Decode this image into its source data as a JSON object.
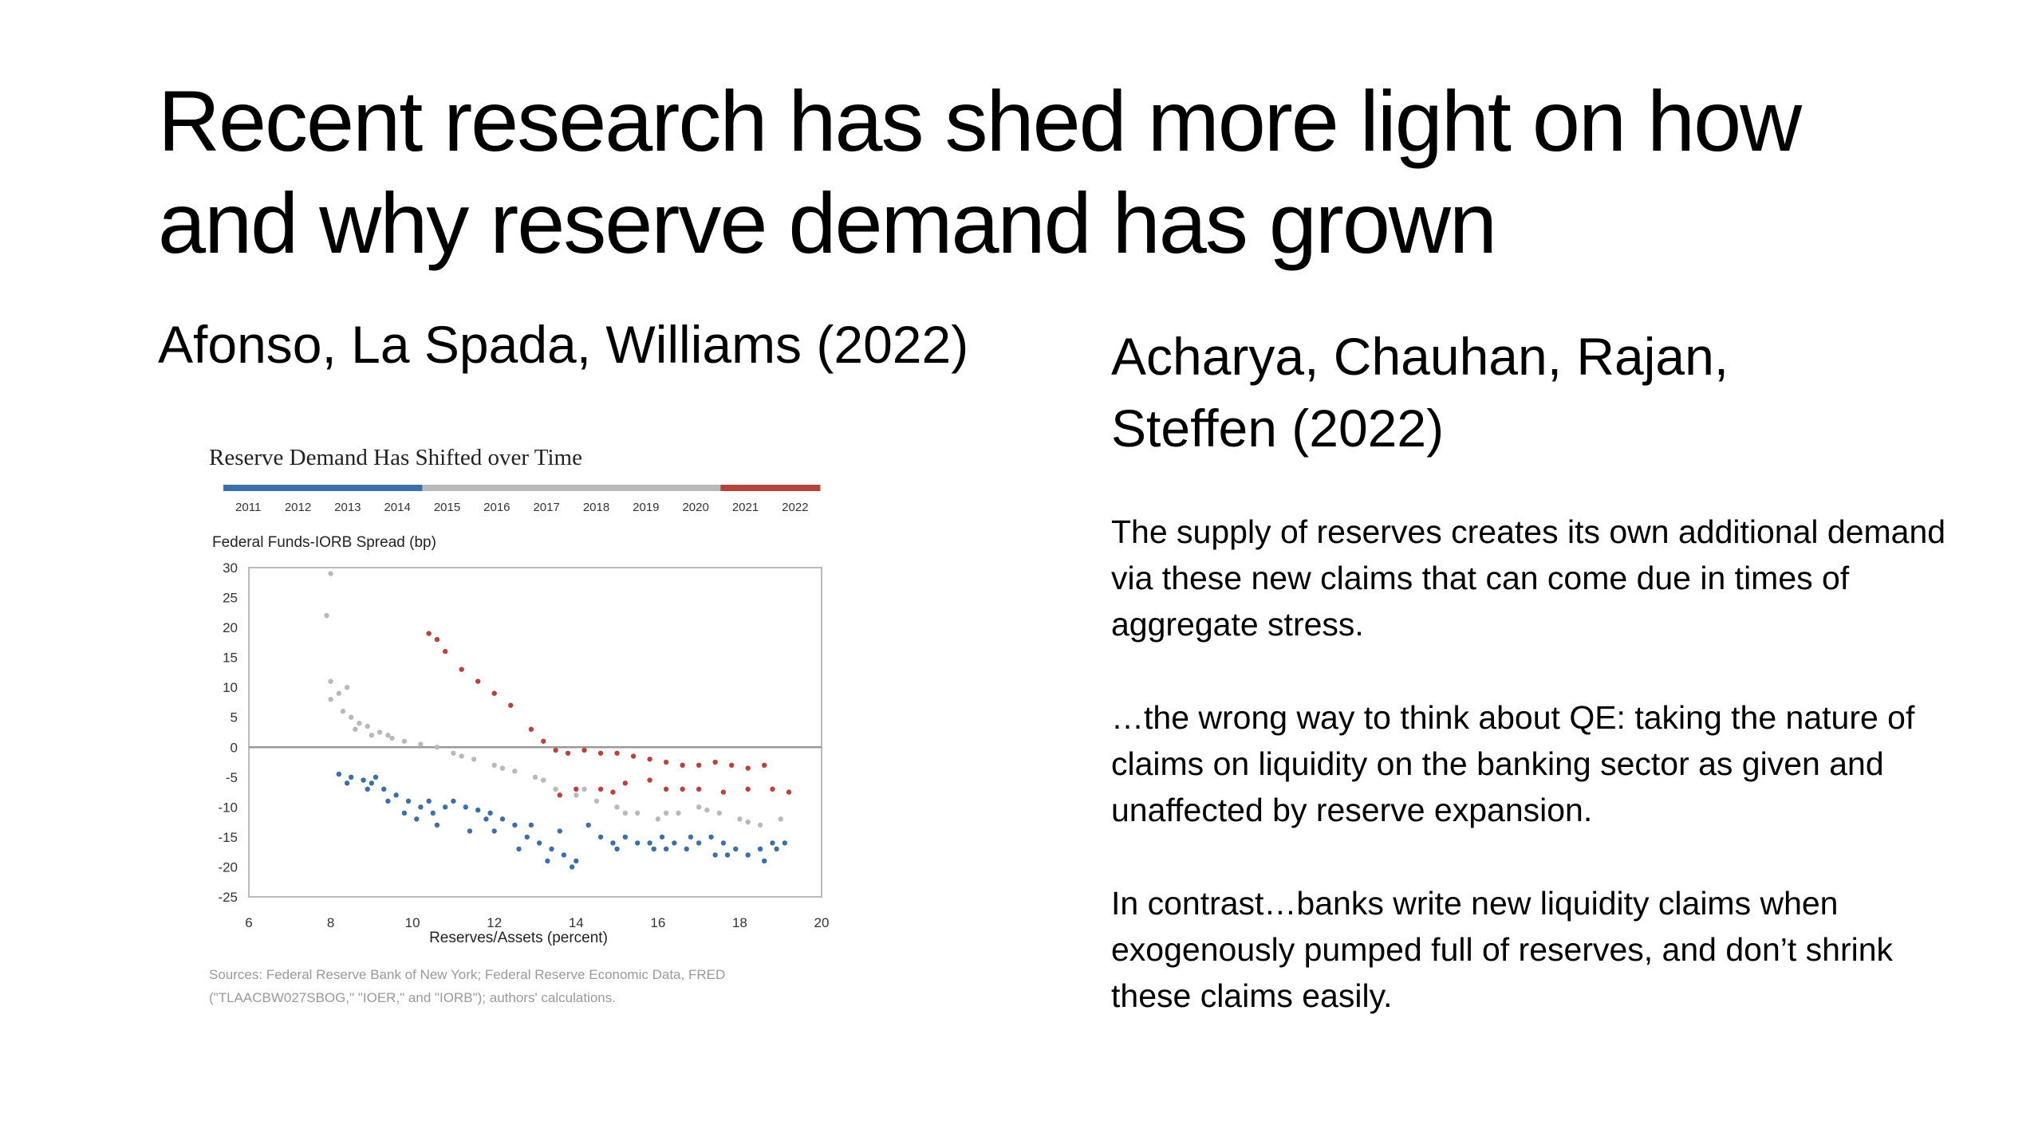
{
  "slide": {
    "title": "Recent research has shed more light on how and why reserve demand has grown",
    "left_heading": "Afonso, La Spada, Williams (2022)",
    "right_heading": "Acharya, Chauhan, Rajan, Steffen (2022)",
    "paragraphs": [
      "The supply of reserves creates its own additional demand via these new claims that can come due in times of aggregate stress.",
      "…the wrong way to think about QE: taking the nature of claims on liquidity on the banking sector as given and unaffected by reserve expansion.",
      "In contrast…banks write new liquidity claims when exogenously pumped full of reserves, and don’t shrink these claims easily."
    ]
  },
  "chart_data": {
    "type": "scatter",
    "title": "Reserve Demand Has Shifted over Time",
    "xlabel": "Reserves/Assets (percent)",
    "ylabel": "Federal Funds-IORB Spread (bp)",
    "source": "Sources: Federal Reserve Bank of New York; Federal Reserve Economic Data, FRED (\"TLAACBW027SBOG,\" \"IOER,\" and \"IORB\"); authors' calculations.",
    "xlim": [
      6,
      20
    ],
    "ylim": [
      -25,
      30
    ],
    "xticks": [
      6,
      8,
      10,
      12,
      14,
      16,
      18,
      20
    ],
    "yticks": [
      30,
      25,
      20,
      15,
      10,
      5,
      0,
      -5,
      -10,
      -15,
      -20,
      -25
    ],
    "years": [
      "2011",
      "2012",
      "2013",
      "2014",
      "2015",
      "2016",
      "2017",
      "2018",
      "2019",
      "2020",
      "2021",
      "2022"
    ],
    "year_colors": [
      "#3c6fa8",
      "#3c6fa8",
      "#3c6fa8",
      "#3c6fa8",
      "#b9b9b9",
      "#b9b9b9",
      "#b9b9b9",
      "#b9b9b9",
      "#b9b9b9",
      "#b9b9b9",
      "#b5443e",
      "#b5443e"
    ],
    "series": [
      {
        "color": "#3c6fa8",
        "points": [
          [
            8.2,
            -4.5
          ],
          [
            8.5,
            -5
          ],
          [
            8.8,
            -5.5
          ],
          [
            9.0,
            -6
          ],
          [
            9.3,
            -7
          ],
          [
            9.6,
            -8
          ],
          [
            9.9,
            -9
          ],
          [
            10.2,
            -10
          ],
          [
            10.5,
            -11
          ],
          [
            10.8,
            -10
          ],
          [
            11.0,
            -9
          ],
          [
            11.3,
            -10
          ],
          [
            11.6,
            -10.5
          ],
          [
            11.9,
            -11
          ],
          [
            12.2,
            -12
          ],
          [
            12.5,
            -13
          ],
          [
            12.8,
            -15
          ],
          [
            13.1,
            -16
          ],
          [
            13.4,
            -17
          ],
          [
            13.7,
            -18
          ],
          [
            14.0,
            -19
          ],
          [
            14.3,
            -13
          ],
          [
            14.6,
            -15
          ],
          [
            14.9,
            -16
          ],
          [
            15.2,
            -15
          ],
          [
            15.5,
            -16
          ],
          [
            15.8,
            -16
          ],
          [
            16.1,
            -15
          ],
          [
            16.4,
            -16
          ],
          [
            16.7,
            -17
          ],
          [
            17.0,
            -16
          ],
          [
            17.3,
            -15
          ],
          [
            17.6,
            -16
          ],
          [
            17.9,
            -17
          ],
          [
            18.2,
            -18
          ],
          [
            18.5,
            -17
          ],
          [
            18.8,
            -16
          ],
          [
            19.1,
            -16
          ],
          [
            8.4,
            -6
          ],
          [
            8.9,
            -7
          ],
          [
            9.4,
            -9
          ],
          [
            9.8,
            -11
          ],
          [
            10.1,
            -12
          ],
          [
            10.6,
            -13
          ],
          [
            11.4,
            -14
          ],
          [
            12.0,
            -14
          ],
          [
            12.6,
            -17
          ],
          [
            13.3,
            -19
          ],
          [
            13.9,
            -20
          ],
          [
            15.0,
            -17
          ],
          [
            15.9,
            -17
          ],
          [
            16.8,
            -15
          ],
          [
            17.7,
            -18
          ],
          [
            18.6,
            -19
          ],
          [
            9.1,
            -5
          ],
          [
            10.4,
            -9
          ],
          [
            11.8,
            -12
          ],
          [
            12.9,
            -13
          ],
          [
            13.6,
            -14
          ],
          [
            16.2,
            -17
          ],
          [
            17.4,
            -18
          ],
          [
            18.9,
            -17
          ]
        ]
      },
      {
        "color": "#b9b9b9",
        "points": [
          [
            7.9,
            22
          ],
          [
            8.0,
            8
          ],
          [
            8.2,
            9
          ],
          [
            8.4,
            10
          ],
          [
            8.0,
            11
          ],
          [
            8.3,
            6
          ],
          [
            8.5,
            5
          ],
          [
            8.7,
            4
          ],
          [
            8.9,
            3.5
          ],
          [
            9.2,
            2.5
          ],
          [
            9.5,
            1.5
          ],
          [
            9.8,
            1
          ],
          [
            10.2,
            0.5
          ],
          [
            10.6,
            0
          ],
          [
            11.0,
            -1
          ],
          [
            11.5,
            -2
          ],
          [
            12.0,
            -3
          ],
          [
            12.5,
            -4
          ],
          [
            13.0,
            -5
          ],
          [
            13.5,
            -7
          ],
          [
            14.0,
            -8
          ],
          [
            14.5,
            -9
          ],
          [
            15.0,
            -10
          ],
          [
            15.5,
            -11
          ],
          [
            16.0,
            -12
          ],
          [
            16.5,
            -11
          ],
          [
            17.0,
            -10
          ],
          [
            17.5,
            -11
          ],
          [
            18.0,
            -12
          ],
          [
            18.5,
            -13
          ],
          [
            19.0,
            -12
          ],
          [
            8.0,
            29
          ],
          [
            8.6,
            3
          ],
          [
            9.0,
            2
          ],
          [
            9.4,
            2
          ],
          [
            11.2,
            -1.5
          ],
          [
            12.2,
            -3.5
          ],
          [
            13.2,
            -5.5
          ],
          [
            14.2,
            -7
          ],
          [
            15.2,
            -11
          ],
          [
            16.2,
            -11
          ],
          [
            17.2,
            -10.5
          ],
          [
            18.2,
            -12.5
          ]
        ]
      },
      {
        "color": "#b5443e",
        "points": [
          [
            10.4,
            19
          ],
          [
            10.6,
            18
          ],
          [
            10.8,
            16
          ],
          [
            11.2,
            13
          ],
          [
            11.6,
            11
          ],
          [
            12.0,
            9
          ],
          [
            12.4,
            7
          ],
          [
            12.9,
            3
          ],
          [
            13.2,
            1
          ],
          [
            13.5,
            -0.5
          ],
          [
            13.8,
            -1
          ],
          [
            14.2,
            -0.5
          ],
          [
            14.6,
            -1
          ],
          [
            15.0,
            -1
          ],
          [
            15.4,
            -1.5
          ],
          [
            15.8,
            -2
          ],
          [
            16.2,
            -2.5
          ],
          [
            16.6,
            -3
          ],
          [
            17.0,
            -3
          ],
          [
            17.4,
            -2.5
          ],
          [
            17.8,
            -3
          ],
          [
            18.2,
            -3.5
          ],
          [
            18.6,
            -3
          ],
          [
            14.0,
            -7
          ],
          [
            14.6,
            -7
          ],
          [
            15.2,
            -6
          ],
          [
            15.8,
            -5.5
          ],
          [
            16.2,
            -7
          ],
          [
            16.6,
            -7
          ],
          [
            17.0,
            -7
          ],
          [
            17.6,
            -7.5
          ],
          [
            18.2,
            -7
          ],
          [
            18.8,
            -7
          ],
          [
            19.2,
            -7.5
          ],
          [
            13.6,
            -8
          ],
          [
            14.9,
            -7.5
          ]
        ]
      }
    ]
  }
}
